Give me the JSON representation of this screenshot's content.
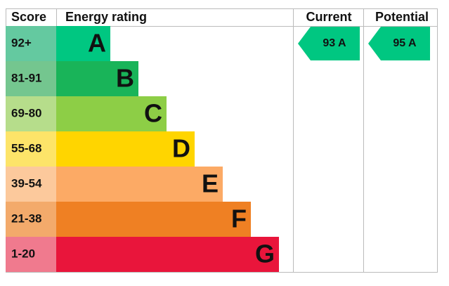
{
  "header": {
    "score": "Score",
    "rating": "Energy rating",
    "current": "Current",
    "potential": "Potential"
  },
  "bands": [
    {
      "score": "92+",
      "letter": "A",
      "color": "#00c781",
      "score_color": "#64c9a0"
    },
    {
      "score": "81-91",
      "letter": "B",
      "color": "#19b459",
      "score_color": "#74c68f"
    },
    {
      "score": "69-80",
      "letter": "C",
      "color": "#8dce46",
      "score_color": "#b6dd8b"
    },
    {
      "score": "55-68",
      "letter": "D",
      "color": "#ffd500",
      "score_color": "#fde469"
    },
    {
      "score": "39-54",
      "letter": "E",
      "color": "#fcaa65",
      "score_color": "#fcc99c"
    },
    {
      "score": "21-38",
      "letter": "F",
      "color": "#ef8023",
      "score_color": "#f3aa6b"
    },
    {
      "score": "1-20",
      "letter": "G",
      "color": "#e9153b",
      "score_color": "#f07a8e"
    }
  ],
  "current": {
    "label": "93 A",
    "band": 0
  },
  "potential": {
    "label": "95 A",
    "band": 0
  }
}
